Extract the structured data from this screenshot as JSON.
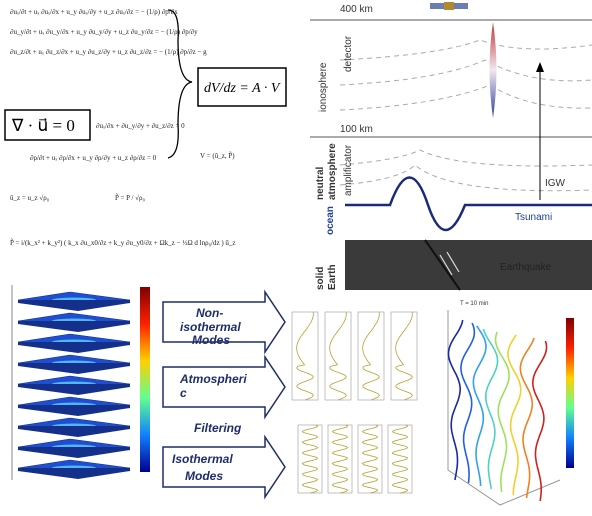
{
  "equations": {
    "momentum": [
      "∂uₓ/∂t + uₓ ∂uₓ/∂x + u_y ∂uₓ/∂y + u_z ∂uₓ/∂z = − (1/ρ) ∂p/∂x",
      "∂u_y/∂t + uₓ ∂u_y/∂x + u_y ∂u_y/∂y + u_z ∂u_y/∂z = − (1/ρ) ∂p/∂y",
      "∂u_z/∂t + uₓ ∂u_z/∂x + u_y ∂u_z/∂y + u_z ∂u_z/∂z = − (1/ρ) ∂p/∂z − g"
    ],
    "divergence_box": "∇ · u⃗ = 0",
    "divergence": "∂uₓ/∂x + ∂u_y/∂y + ∂u_z/∂z = 0",
    "continuity": "∂ρ/∂t + uₓ ∂ρ/∂x + u_y ∂ρ/∂y + u_z ∂ρ/∂z = 0",
    "system_box": "dV/dz = A · V",
    "vector": "V = (ũ_z, P̃)",
    "scaled_u": "ũ_z = u_z √ρ₀",
    "scaled_p": "P̃ = P / √ρ₀",
    "pressure": "P̃ = i/(k_x² + k_y²) ( k_x ∂u_x0/∂z + k_y ∂u_y0/∂z + Ωk_z − ½Ω d lnρ₀/dz ) ũ_z"
  },
  "diagram": {
    "top_altitude": "400 km",
    "mid_altitude": "100 km",
    "ionosphere": "ionosphere",
    "detector": "detector",
    "neutral_atmosphere": [
      "neutral",
      "atmosphere"
    ],
    "amplificator": "amplificator",
    "igw": "IGW",
    "ocean": "ocean",
    "tsunami": "Tsunami",
    "solid_earth": [
      "solid",
      "Earth"
    ],
    "earthquake": "Earthquake"
  },
  "arrows": [
    [
      "Non-",
      "isothermal",
      "Modes"
    ],
    [
      "Atmospheri",
      "c",
      "Filtering"
    ],
    [
      "Isothermal",
      "Modes"
    ]
  ],
  "plots": {
    "time_label": "T = 10 min"
  }
}
